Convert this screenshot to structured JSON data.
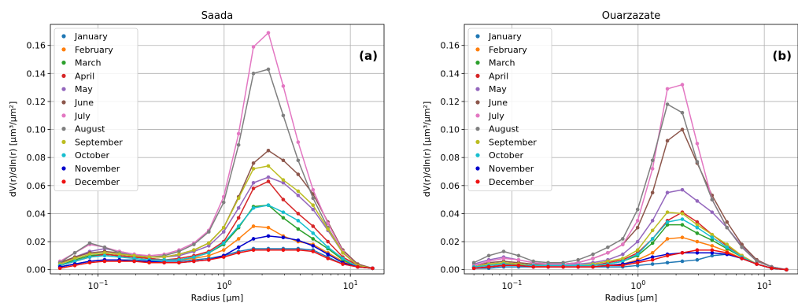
{
  "chart_data": [
    {
      "type": "line",
      "title": "Saada",
      "panel_label": "(a)",
      "xlabel": "Radius [µm]",
      "ylabel": "dV(r)/dln(r) [µm³/µm²]",
      "x_scale": "log",
      "xlim": [
        0.042,
        18.5
      ],
      "ylim": [
        -0.003,
        0.175
      ],
      "y_ticks": [
        "0.00",
        "0.02",
        "0.04",
        "0.06",
        "0.08",
        "0.10",
        "0.12",
        "0.14",
        "0.16"
      ],
      "x_ticks": [
        {
          "value": 0.1,
          "base": "10",
          "exp": "−1"
        },
        {
          "value": 1,
          "base": "10",
          "exp": "0"
        },
        {
          "value": 10,
          "base": "10",
          "exp": "1"
        }
      ],
      "grid": true,
      "legend_position": "top-left",
      "x": [
        0.05,
        0.0656,
        0.0861,
        0.113,
        0.148,
        0.194,
        0.255,
        0.335,
        0.439,
        0.576,
        0.756,
        0.992,
        1.302,
        1.708,
        2.241,
        2.941,
        3.859,
        5.064,
        6.644,
        8.719,
        11.44,
        15.0
      ],
      "series": [
        {
          "name": "January",
          "color": "#1f77b4",
          "values": [
            0.002,
            0.004,
            0.006,
            0.007,
            0.007,
            0.007,
            0.006,
            0.006,
            0.006,
            0.007,
            0.008,
            0.01,
            0.013,
            0.015,
            0.015,
            0.015,
            0.015,
            0.014,
            0.009,
            0.004,
            0.002,
            0.001
          ]
        },
        {
          "name": "February",
          "color": "#ff7f0e",
          "values": [
            0.003,
            0.006,
            0.009,
            0.011,
            0.01,
            0.009,
            0.008,
            0.007,
            0.007,
            0.008,
            0.01,
            0.014,
            0.022,
            0.031,
            0.03,
            0.024,
            0.02,
            0.018,
            0.012,
            0.006,
            0.002,
            0.001
          ]
        },
        {
          "name": "March",
          "color": "#2ca02c",
          "values": [
            0.003,
            0.007,
            0.01,
            0.011,
            0.01,
            0.009,
            0.008,
            0.007,
            0.007,
            0.009,
            0.012,
            0.018,
            0.03,
            0.045,
            0.046,
            0.037,
            0.029,
            0.022,
            0.015,
            0.007,
            0.002,
            0.001
          ]
        },
        {
          "name": "April",
          "color": "#d62728",
          "values": [
            0.003,
            0.006,
            0.009,
            0.011,
            0.01,
            0.009,
            0.008,
            0.007,
            0.008,
            0.01,
            0.013,
            0.02,
            0.037,
            0.058,
            0.063,
            0.05,
            0.04,
            0.031,
            0.02,
            0.009,
            0.003,
            0.001
          ]
        },
        {
          "name": "May",
          "color": "#9467bd",
          "values": [
            0.004,
            0.009,
            0.013,
            0.015,
            0.013,
            0.011,
            0.009,
            0.009,
            0.01,
            0.013,
            0.017,
            0.027,
            0.044,
            0.062,
            0.066,
            0.062,
            0.053,
            0.043,
            0.028,
            0.012,
            0.003,
            0.001
          ]
        },
        {
          "name": "June",
          "color": "#8c564b",
          "values": [
            0.005,
            0.009,
            0.012,
            0.013,
            0.012,
            0.01,
            0.009,
            0.009,
            0.011,
            0.014,
            0.019,
            0.03,
            0.052,
            0.076,
            0.085,
            0.078,
            0.068,
            0.054,
            0.034,
            0.014,
            0.004,
            0.001
          ]
        },
        {
          "name": "July",
          "color": "#e377c2",
          "values": [
            0.006,
            0.012,
            0.018,
            0.016,
            0.013,
            0.011,
            0.01,
            0.011,
            0.014,
            0.019,
            0.028,
            0.052,
            0.097,
            0.159,
            0.169,
            0.131,
            0.091,
            0.057,
            0.033,
            0.013,
            0.003,
            0.001
          ]
        },
        {
          "name": "August",
          "color": "#7f7f7f",
          "values": [
            0.005,
            0.012,
            0.019,
            0.016,
            0.012,
            0.01,
            0.009,
            0.01,
            0.013,
            0.018,
            0.027,
            0.048,
            0.089,
            0.14,
            0.143,
            0.11,
            0.078,
            0.051,
            0.03,
            0.012,
            0.003,
            0.001
          ]
        },
        {
          "name": "September",
          "color": "#bcbd22",
          "values": [
            0.004,
            0.008,
            0.011,
            0.012,
            0.011,
            0.01,
            0.009,
            0.009,
            0.011,
            0.014,
            0.019,
            0.03,
            0.051,
            0.072,
            0.074,
            0.064,
            0.056,
            0.046,
            0.029,
            0.012,
            0.003,
            0.001
          ]
        },
        {
          "name": "October",
          "color": "#17becf",
          "values": [
            0.003,
            0.006,
            0.009,
            0.01,
            0.009,
            0.008,
            0.007,
            0.007,
            0.007,
            0.009,
            0.012,
            0.019,
            0.031,
            0.044,
            0.046,
            0.041,
            0.035,
            0.026,
            0.016,
            0.008,
            0.002,
            0.001
          ]
        },
        {
          "name": "November",
          "color": "#0000cc",
          "values": [
            0.002,
            0.004,
            0.006,
            0.007,
            0.007,
            0.006,
            0.006,
            0.005,
            0.005,
            0.006,
            0.007,
            0.01,
            0.016,
            0.022,
            0.024,
            0.023,
            0.021,
            0.017,
            0.011,
            0.005,
            0.002,
            0.001
          ]
        },
        {
          "name": "December",
          "color": "#ee1111",
          "values": [
            0.001,
            0.003,
            0.005,
            0.006,
            0.006,
            0.006,
            0.005,
            0.005,
            0.005,
            0.006,
            0.007,
            0.009,
            0.012,
            0.014,
            0.014,
            0.014,
            0.014,
            0.013,
            0.008,
            0.004,
            0.002,
            0.001
          ]
        }
      ]
    },
    {
      "type": "line",
      "title": "Ouarzazate",
      "panel_label": "(b)",
      "xlabel": "Radius [µm]",
      "ylabel": "dV(r)/dln(r) [µm³/µm²]",
      "x_scale": "log",
      "xlim": [
        0.042,
        18.5
      ],
      "ylim": [
        -0.003,
        0.175
      ],
      "y_ticks": [
        "0.00",
        "0.02",
        "0.04",
        "0.06",
        "0.08",
        "0.10",
        "0.12",
        "0.14",
        "0.16"
      ],
      "x_ticks": [
        {
          "value": 0.1,
          "base": "10",
          "exp": "−1"
        },
        {
          "value": 1,
          "base": "10",
          "exp": "0"
        },
        {
          "value": 10,
          "base": "10",
          "exp": "1"
        }
      ],
      "grid": true,
      "legend_position": "top-left",
      "x": [
        0.05,
        0.0656,
        0.0861,
        0.113,
        0.148,
        0.194,
        0.255,
        0.335,
        0.439,
        0.576,
        0.756,
        0.992,
        1.302,
        1.708,
        2.241,
        2.941,
        3.859,
        5.064,
        6.644,
        8.719,
        11.44,
        15.0
      ],
      "series": [
        {
          "name": "January",
          "color": "#1f77b4",
          "values": [
            0.001,
            0.001,
            0.002,
            0.002,
            0.002,
            0.002,
            0.002,
            0.002,
            0.002,
            0.002,
            0.002,
            0.003,
            0.004,
            0.005,
            0.006,
            0.007,
            0.01,
            0.011,
            0.008,
            0.004,
            0.001,
            0.0
          ]
        },
        {
          "name": "February",
          "color": "#ff7f0e",
          "values": [
            0.002,
            0.003,
            0.004,
            0.004,
            0.003,
            0.002,
            0.002,
            0.002,
            0.002,
            0.003,
            0.004,
            0.007,
            0.012,
            0.022,
            0.023,
            0.02,
            0.017,
            0.013,
            0.008,
            0.004,
            0.001,
            0.0
          ]
        },
        {
          "name": "March",
          "color": "#2ca02c",
          "values": [
            0.002,
            0.004,
            0.005,
            0.004,
            0.003,
            0.003,
            0.003,
            0.003,
            0.003,
            0.004,
            0.006,
            0.01,
            0.019,
            0.032,
            0.032,
            0.026,
            0.021,
            0.015,
            0.009,
            0.004,
            0.001,
            0.0
          ]
        },
        {
          "name": "April",
          "color": "#d62728",
          "values": [
            0.002,
            0.003,
            0.004,
            0.004,
            0.003,
            0.003,
            0.003,
            0.003,
            0.003,
            0.005,
            0.007,
            0.012,
            0.022,
            0.035,
            0.041,
            0.034,
            0.025,
            0.017,
            0.01,
            0.004,
            0.001,
            0.0
          ]
        },
        {
          "name": "May",
          "color": "#9467bd",
          "values": [
            0.004,
            0.007,
            0.009,
            0.007,
            0.005,
            0.004,
            0.004,
            0.004,
            0.005,
            0.007,
            0.011,
            0.02,
            0.035,
            0.055,
            0.057,
            0.049,
            0.041,
            0.03,
            0.017,
            0.007,
            0.002,
            0.0
          ]
        },
        {
          "name": "June",
          "color": "#8c564b",
          "values": [
            0.003,
            0.005,
            0.006,
            0.005,
            0.004,
            0.004,
            0.004,
            0.005,
            0.008,
            0.012,
            0.018,
            0.03,
            0.055,
            0.092,
            0.1,
            0.076,
            0.053,
            0.034,
            0.018,
            0.007,
            0.002,
            0.0
          ]
        },
        {
          "name": "July",
          "color": "#e377c2",
          "values": [
            0.003,
            0.006,
            0.008,
            0.007,
            0.005,
            0.004,
            0.004,
            0.005,
            0.008,
            0.012,
            0.018,
            0.035,
            0.072,
            0.129,
            0.132,
            0.09,
            0.05,
            0.03,
            0.016,
            0.006,
            0.002,
            0.0
          ]
        },
        {
          "name": "August",
          "color": "#7f7f7f",
          "values": [
            0.005,
            0.01,
            0.013,
            0.01,
            0.006,
            0.005,
            0.005,
            0.007,
            0.011,
            0.016,
            0.022,
            0.043,
            0.078,
            0.118,
            0.112,
            0.077,
            0.05,
            0.03,
            0.016,
            0.006,
            0.002,
            0.0
          ]
        },
        {
          "name": "September",
          "color": "#bcbd22",
          "values": [
            0.002,
            0.004,
            0.005,
            0.004,
            0.003,
            0.003,
            0.003,
            0.003,
            0.004,
            0.006,
            0.008,
            0.014,
            0.028,
            0.041,
            0.04,
            0.032,
            0.025,
            0.018,
            0.01,
            0.004,
            0.001,
            0.0
          ]
        },
        {
          "name": "October",
          "color": "#17becf",
          "values": [
            0.002,
            0.003,
            0.004,
            0.003,
            0.003,
            0.003,
            0.003,
            0.003,
            0.003,
            0.004,
            0.006,
            0.011,
            0.022,
            0.034,
            0.036,
            0.03,
            0.023,
            0.016,
            0.009,
            0.004,
            0.001,
            0.0
          ]
        },
        {
          "name": "November",
          "color": "#0000cc",
          "values": [
            0.001,
            0.002,
            0.003,
            0.003,
            0.002,
            0.002,
            0.002,
            0.002,
            0.002,
            0.003,
            0.004,
            0.006,
            0.009,
            0.011,
            0.012,
            0.012,
            0.012,
            0.011,
            0.008,
            0.004,
            0.001,
            0.0
          ]
        },
        {
          "name": "December",
          "color": "#ee1111",
          "values": [
            0.001,
            0.002,
            0.003,
            0.003,
            0.002,
            0.002,
            0.002,
            0.002,
            0.002,
            0.003,
            0.003,
            0.005,
            0.007,
            0.01,
            0.012,
            0.014,
            0.014,
            0.012,
            0.008,
            0.004,
            0.001,
            0.0
          ]
        }
      ]
    }
  ]
}
